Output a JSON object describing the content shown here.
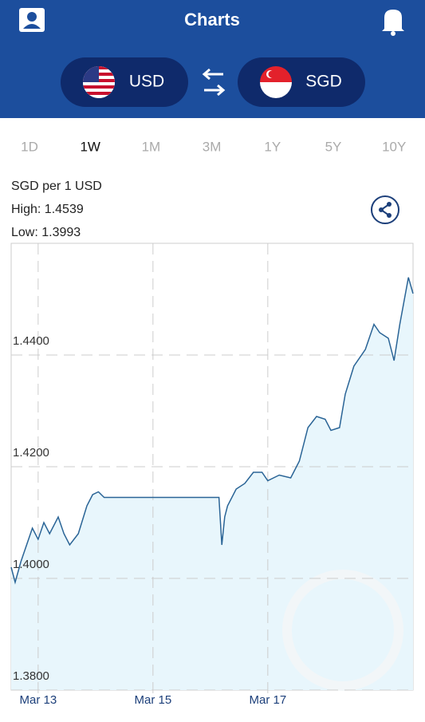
{
  "header": {
    "title": "Charts"
  },
  "currency": {
    "from": "USD",
    "to": "SGD"
  },
  "ranges": {
    "options": [
      "1D",
      "1W",
      "1M",
      "3M",
      "1Y",
      "5Y",
      "10Y"
    ],
    "selected": 1
  },
  "info": {
    "pair": "SGD per 1 USD",
    "high": "High: 1.4539",
    "low": "Low: 1.3993"
  },
  "chart_data": {
    "type": "line",
    "color": "#2a6496",
    "area_color": "#e8f6fc",
    "grid": true,
    "x": [
      12.53,
      12.6,
      12.7,
      12.8,
      12.9,
      13.0,
      13.1,
      13.2,
      13.35,
      13.45,
      13.55,
      13.7,
      13.85,
      13.95,
      14.05,
      14.15,
      14.2,
      15.0,
      16.0,
      16.15,
      16.2,
      16.25,
      16.3,
      16.45,
      16.6,
      16.75,
      16.9,
      17.0,
      17.2,
      17.4,
      17.55,
      17.7,
      17.85,
      18.0,
      18.1,
      18.25,
      18.35,
      18.5,
      18.7,
      18.85,
      18.95,
      19.1,
      19.2,
      19.3,
      19.45,
      19.53
    ],
    "values": [
      1.402,
      1.3993,
      1.403,
      1.406,
      1.409,
      1.407,
      1.41,
      1.408,
      1.411,
      1.408,
      1.406,
      1.408,
      1.413,
      1.415,
      1.4155,
      1.4145,
      1.4145,
      1.4145,
      1.4145,
      1.4145,
      1.406,
      1.411,
      1.413,
      1.416,
      1.417,
      1.419,
      1.419,
      1.4175,
      1.4185,
      1.418,
      1.421,
      1.427,
      1.429,
      1.4285,
      1.4265,
      1.427,
      1.433,
      1.438,
      1.441,
      1.4455,
      1.444,
      1.443,
      1.439,
      1.4455,
      1.4539,
      1.451
    ],
    "xlim": [
      12.53,
      19.53
    ],
    "xticks": [
      {
        "value": 13,
        "label": "Mar 13"
      },
      {
        "value": 15,
        "label": "Mar 15"
      },
      {
        "value": 17,
        "label": "Mar 17"
      }
    ],
    "ylim": [
      1.38,
      1.46
    ],
    "yticks": [
      {
        "value": 1.38,
        "label": "1.3800"
      },
      {
        "value": 1.4,
        "label": "1.4000"
      },
      {
        "value": 1.42,
        "label": "1.4200"
      },
      {
        "value": 1.44,
        "label": "1.4400"
      }
    ]
  }
}
